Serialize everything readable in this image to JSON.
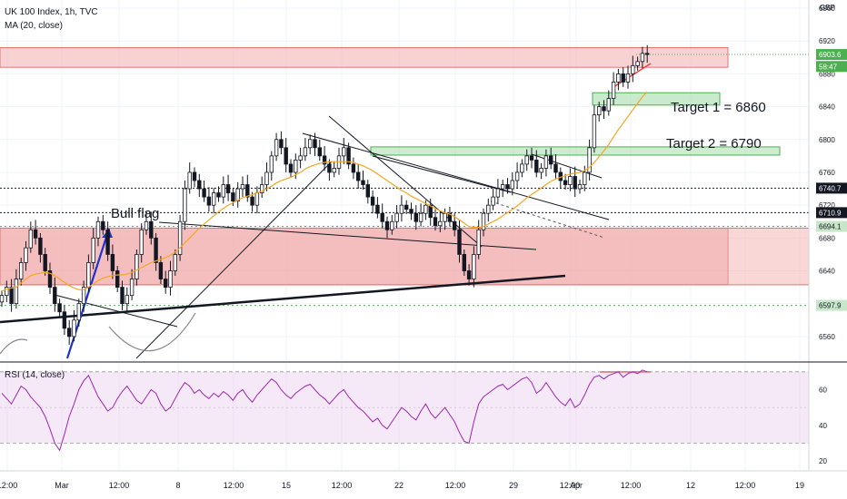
{
  "header": {
    "symbol_line": "UK 100 Index, 1h, TVC",
    "ma_line": "MA (20, close)",
    "currency": "GBP"
  },
  "rsi_header": "RSI (14, close)",
  "annotations": {
    "bull_flag": "Bull flag",
    "target1": "Target 1 = 6860",
    "target2": "Target 2 = 6790"
  },
  "colors": {
    "up": "#ffffff",
    "down": "#131722",
    "wick": "#131722",
    "ma": "#f5a623",
    "rsi": "#9c27b0",
    "red_zone": "#f2a6a6",
    "green_zone": "#9fd9a4",
    "blue_arrow": "#1e31d0",
    "trendline": "#131722",
    "red_line": "#f44336"
  },
  "chart_data": [
    {
      "type": "candlestick",
      "title": "UK 100 Index, 1h, TVC",
      "indicator": "MA (20, close)",
      "ylim": [
        6530,
        6970
      ],
      "y_ticks": [
        6560,
        6600,
        6640,
        6680,
        6720,
        6760,
        6800,
        6840,
        6880,
        6920,
        6960
      ],
      "x_ticks": [
        "12:00",
        "Mar",
        "12:00",
        "8",
        "12:00",
        "15",
        "12:00",
        "22",
        "12:00",
        "29",
        "12:00",
        "Apr",
        "12:00",
        "12",
        "12:00",
        "19"
      ],
      "price_labels": [
        {
          "text": "6903.6",
          "value": 6903.6,
          "color": "#4caf50",
          "text_color": "#ffffff"
        },
        {
          "text": "58:47",
          "value": 6889,
          "color": "#4caf50",
          "text_color": "#ffffff"
        },
        {
          "text": "6740.7",
          "value": 6740.7,
          "color": "#131722",
          "text_color": "#ffffff"
        },
        {
          "text": "6710.9",
          "value": 6710.9,
          "color": "#131722",
          "text_color": "#ffffff"
        },
        {
          "text": "6694.1",
          "value": 6694.1,
          "color": "#c8e6c9",
          "text_color": "#131722"
        },
        {
          "text": "6597.9",
          "value": 6597.9,
          "color": "#c8e6c9",
          "text_color": "#131722"
        }
      ],
      "levels": [
        6740.7,
        6710.9,
        6694.1,
        6597.9
      ],
      "zones": [
        {
          "name": "resistance",
          "from": 6888,
          "to": 6912
        },
        {
          "name": "support",
          "from": 6623,
          "to": 6692
        }
      ],
      "closes": [
        6610,
        6620,
        6600,
        6630,
        6650,
        6668,
        6690,
        6680,
        6660,
        6640,
        6620,
        6600,
        6590,
        6570,
        6560,
        6580,
        6600,
        6620,
        6650,
        6680,
        6700,
        6690,
        6660,
        6640,
        6620,
        6600,
        6610,
        6630,
        6660,
        6690,
        6700,
        6680,
        6650,
        6630,
        6620,
        6640,
        6660,
        6700,
        6740,
        6760,
        6750,
        6740,
        6730,
        6720,
        6735,
        6730,
        6745,
        6735,
        6725,
        6740,
        6745,
        6730,
        6720,
        6735,
        6745,
        6760,
        6780,
        6800,
        6790,
        6770,
        6760,
        6775,
        6780,
        6790,
        6800,
        6790,
        6780,
        6770,
        6760,
        6765,
        6780,
        6790,
        6770,
        6760,
        6750,
        6745,
        6730,
        6720,
        6710,
        6700,
        6690,
        6700,
        6710,
        6720,
        6715,
        6710,
        6700,
        6710,
        6720,
        6705,
        6695,
        6700,
        6710,
        6700,
        6690,
        6660,
        6640,
        6630,
        6660,
        6690,
        6710,
        6720,
        6730,
        6740,
        6745,
        6740,
        6750,
        6760,
        6770,
        6780,
        6775,
        6760,
        6765,
        6780,
        6770,
        6760,
        6750,
        6745,
        6755,
        6740,
        6745,
        6760,
        6790,
        6830,
        6840,
        6835,
        6850,
        6870,
        6880,
        6870,
        6880,
        6890,
        6895,
        6905,
        6903.6
      ],
      "ma_values": [
        6615,
        6618,
        6619,
        6620,
        6625,
        6630,
        6634,
        6636,
        6637,
        6638,
        6637,
        6634,
        6630,
        6626,
        6622,
        6619,
        6617,
        6617,
        6620,
        6624,
        6628,
        6631,
        6633,
        6634,
        6635,
        6635,
        6636,
        6638,
        6641,
        6644,
        6647,
        6650,
        6652,
        6654,
        6656,
        6659,
        6663,
        6668,
        6674,
        6680,
        6686,
        6692,
        6697,
        6702,
        6707,
        6712,
        6716,
        6720,
        6723,
        6726,
        6729,
        6731,
        6733,
        6735,
        6737,
        6740,
        6743,
        6747,
        6750,
        6752,
        6754,
        6757,
        6760,
        6764,
        6767,
        6769,
        6771,
        6772,
        6773,
        6773,
        6773,
        6773,
        6773,
        6772,
        6770,
        6768,
        6765,
        6762,
        6758,
        6754,
        6750,
        6746,
        6742,
        6738,
        6735,
        6731,
        6728,
        6725,
        6722,
        6719,
        6716,
        6713,
        6711,
        6709,
        6706,
        6702,
        6698,
        6694,
        6693,
        6693,
        6694,
        6697,
        6700,
        6703,
        6707,
        6711,
        6715,
        6719,
        6724,
        6729,
        6733,
        6737,
        6741,
        6745,
        6749,
        6752,
        6754,
        6756,
        6758,
        6759,
        6760,
        6762,
        6766,
        6772,
        6779,
        6786,
        6794,
        6803,
        6812,
        6820,
        6828,
        6836,
        6844,
        6852,
        6858
      ]
    },
    {
      "type": "line",
      "title": "RSI (14, close)",
      "ylim": [
        15,
        75
      ],
      "y_ticks": [
        20,
        40,
        60
      ],
      "bands": [
        30,
        70
      ],
      "values": [
        58,
        55,
        52,
        57,
        62,
        60,
        56,
        53,
        50,
        45,
        38,
        30,
        26,
        35,
        45,
        52,
        60,
        65,
        68,
        62,
        56,
        52,
        48,
        50,
        55,
        59,
        62,
        58,
        54,
        52,
        56,
        60,
        58,
        52,
        48,
        50,
        55,
        60,
        64,
        62,
        58,
        60,
        57,
        55,
        58,
        56,
        59,
        57,
        54,
        58,
        60,
        56,
        53,
        57,
        60,
        63,
        66,
        64,
        60,
        57,
        55,
        58,
        60,
        62,
        63,
        60,
        57,
        55,
        52,
        55,
        58,
        60,
        56,
        53,
        50,
        48,
        45,
        42,
        44,
        40,
        38,
        42,
        46,
        50,
        48,
        45,
        43,
        48,
        52,
        47,
        44,
        47,
        50,
        46,
        42,
        36,
        31,
        30,
        42,
        52,
        56,
        58,
        60,
        62,
        63,
        60,
        62,
        64,
        66,
        67,
        64,
        58,
        60,
        64,
        60,
        56,
        53,
        51,
        55,
        50,
        52,
        57,
        63,
        67,
        68,
        66,
        68,
        69,
        70,
        67,
        69,
        70,
        69,
        71,
        70
      ]
    }
  ]
}
